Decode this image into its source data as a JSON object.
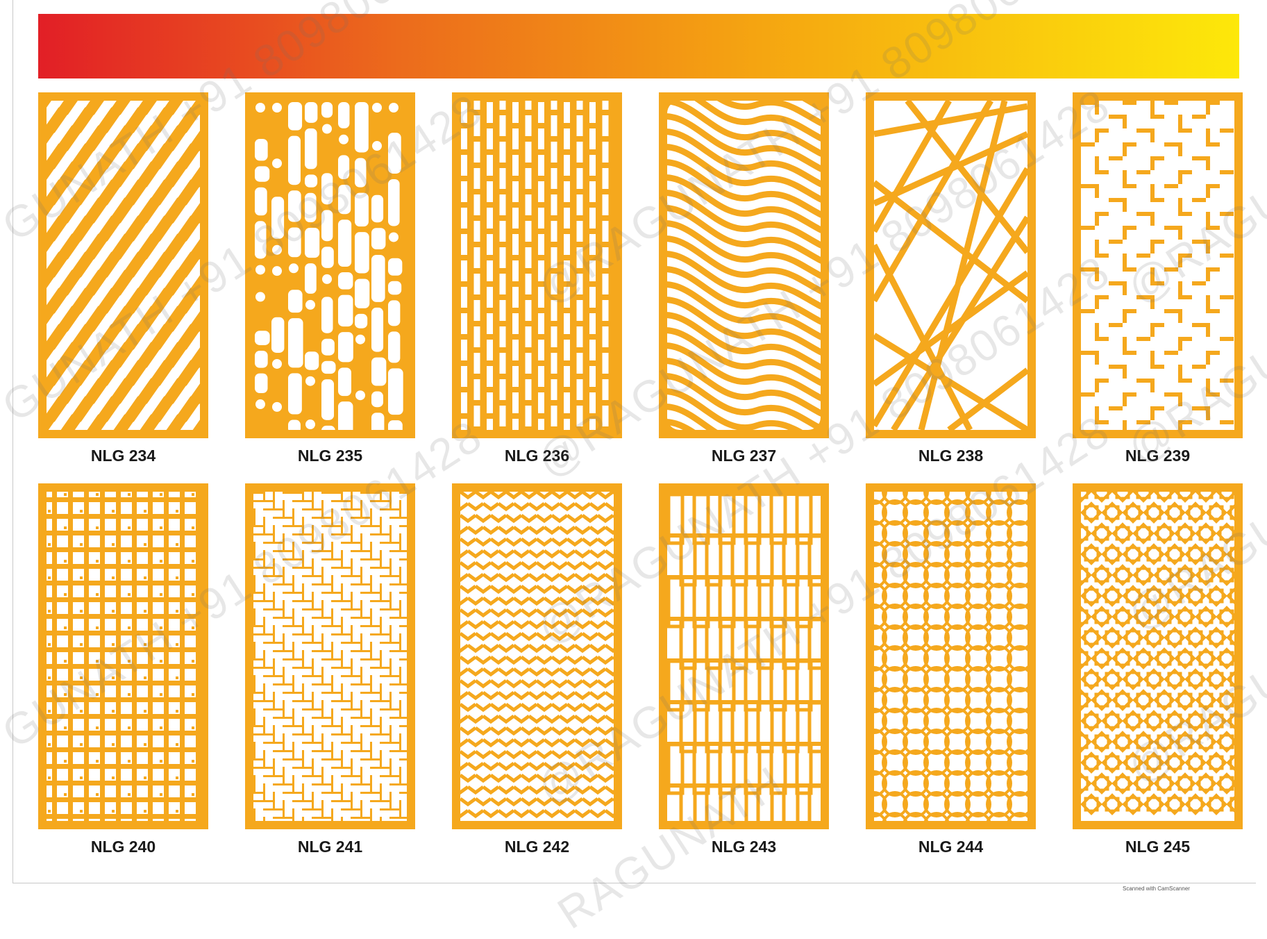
{
  "catalog": {
    "banner_colors": [
      "#e21f26",
      "#ec6b1c",
      "#f5a511",
      "#fde80a"
    ],
    "panel_color": "#f5a81d",
    "designs": [
      {
        "code": "NLG 234",
        "pattern": "diamond-lattice"
      },
      {
        "code": "NLG 235",
        "pattern": "random-pebbles"
      },
      {
        "code": "NLG 236",
        "pattern": "staggered-slots"
      },
      {
        "code": "NLG 237",
        "pattern": "diagonal-waves"
      },
      {
        "code": "NLG 238",
        "pattern": "crossing-lines"
      },
      {
        "code": "NLG 239",
        "pattern": "fret-maze"
      },
      {
        "code": "NLG 240",
        "pattern": "cross-grid"
      },
      {
        "code": "NLG 241",
        "pattern": "fine-maze"
      },
      {
        "code": "NLG 242",
        "pattern": "zigzag-key"
      },
      {
        "code": "NLG 243",
        "pattern": "bamboo-frames"
      },
      {
        "code": "NLG 244",
        "pattern": "quatrefoil"
      },
      {
        "code": "NLG 245",
        "pattern": "octagon-star"
      }
    ]
  },
  "watermark": {
    "brand": "@RAGUNATH",
    "phone": "+91 8098061428",
    "fragments": [
      "GUNATH +91 8098061428",
      "@RAGUNATH +91 8098061428",
      "@RAGUNATH",
      "RAGUNATH"
    ]
  },
  "scanner_note": "Scanned with CamScanner"
}
